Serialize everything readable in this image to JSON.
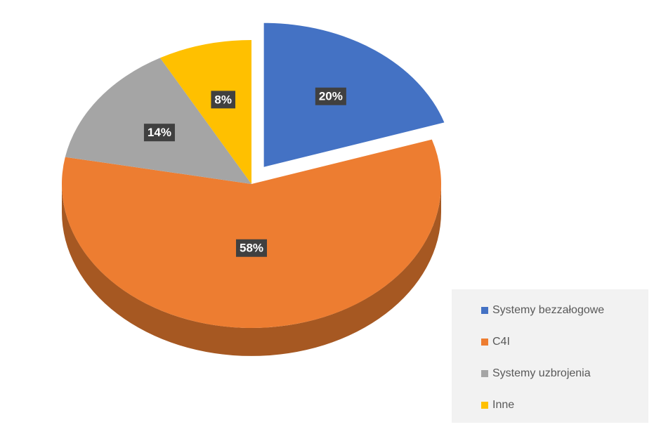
{
  "chart_data": {
    "type": "pie",
    "categories": [
      "Systemy bezzałogowe",
      "C4I",
      "Systemy uzbrojenia",
      "Inne"
    ],
    "values": [
      20,
      58,
      14,
      8
    ],
    "value_labels": [
      "20%",
      "58%",
      "14%",
      "8%"
    ],
    "colors": [
      "#4472c4",
      "#ed7d31",
      "#a5a5a5",
      "#ffc000"
    ],
    "legend": "lower right"
  }
}
